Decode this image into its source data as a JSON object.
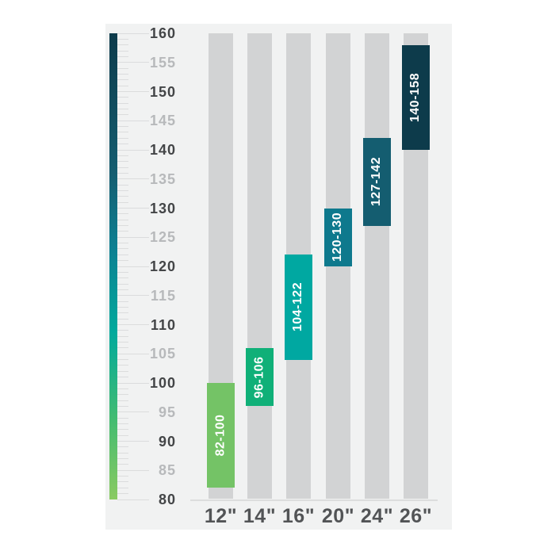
{
  "chart_data": {
    "type": "bar",
    "title": "",
    "xlabel": "",
    "ylabel": "",
    "categories": [
      "12\"",
      "14\"",
      "16\"",
      "20\"",
      "24\"",
      "26\""
    ],
    "bars": [
      {
        "category": "12\"",
        "min": 82,
        "max": 100,
        "label": "82-100",
        "color": "#74c366"
      },
      {
        "category": "14\"",
        "min": 96,
        "max": 106,
        "label": "96-106",
        "color": "#10b078"
      },
      {
        "category": "16\"",
        "min": 104,
        "max": 122,
        "label": "104-122",
        "color": "#00a8a1"
      },
      {
        "category": "20\"",
        "min": 120,
        "max": 130,
        "label": "120-130",
        "color": "#0e798d"
      },
      {
        "category": "24\"",
        "min": 127,
        "max": 142,
        "label": "127-142",
        "color": "#145d70"
      },
      {
        "category": "26\"",
        "min": 140,
        "max": 158,
        "label": "140-158",
        "color": "#0d3b4b"
      }
    ],
    "y_axis": {
      "min": 80,
      "max": 160,
      "minor_tick_step": 1,
      "labeled_tick_step": 5,
      "bold_label_step": 10,
      "tick_labels": [
        "160",
        "155",
        "150",
        "145",
        "140",
        "135",
        "130",
        "125",
        "120",
        "115",
        "110",
        "105",
        "100",
        "95",
        "90",
        "85",
        "80"
      ]
    },
    "ruler_gradient_stops": [
      {
        "pos": 0.0,
        "color": "#8aca61"
      },
      {
        "pos": 0.17,
        "color": "#44bc71"
      },
      {
        "pos": 0.36,
        "color": "#00a99c"
      },
      {
        "pos": 0.54,
        "color": "#0d8092"
      },
      {
        "pos": 0.7,
        "color": "#155d70"
      },
      {
        "pos": 1.0,
        "color": "#0d3b4b"
      }
    ],
    "legend": null,
    "grid": "ruler ticks only",
    "colors": {
      "panel_background": "#f1f2f2",
      "column_background": "#d2d3d4",
      "tick": "#dbdcdd",
      "scale_label_bold": "#434547",
      "scale_label_light": "#b7b9bb",
      "category_label": "#525456",
      "bar_text": "#ffffff"
    }
  }
}
